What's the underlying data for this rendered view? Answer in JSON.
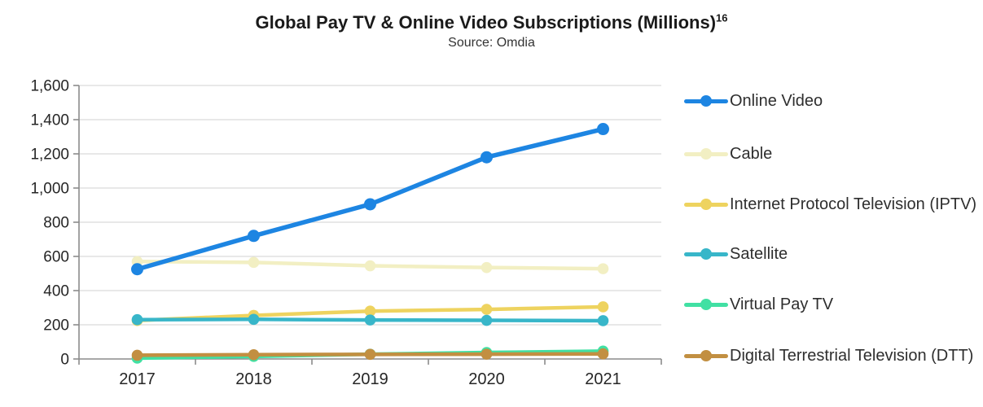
{
  "header": {
    "title": "Global Pay TV & Online Video Subscriptions (Millions)",
    "title_superscript": "16",
    "subtitle": "Source: Omdia"
  },
  "chart_data": {
    "type": "line",
    "x": [
      "2017",
      "2018",
      "2019",
      "2020",
      "2021"
    ],
    "series": [
      {
        "name": "Online Video",
        "color": "#1d85e2",
        "values": [
          525,
          720,
          905,
          1180,
          1345
        ]
      },
      {
        "name": "Cable",
        "color": "#f2efc3",
        "values": [
          570,
          565,
          545,
          535,
          528
        ]
      },
      {
        "name": "Internet Protocol Television (IPTV)",
        "color": "#eed35f",
        "values": [
          225,
          255,
          280,
          290,
          305
        ]
      },
      {
        "name": "Satellite",
        "color": "#38b6c9",
        "values": [
          230,
          232,
          228,
          226,
          224
        ]
      },
      {
        "name": "Virtual Pay TV",
        "color": "#41e0a3",
        "values": [
          5,
          15,
          28,
          38,
          46
        ]
      },
      {
        "name": "Digital Terrestrial Television (DTT)",
        "color": "#c28f41",
        "values": [
          22,
          25,
          27,
          28,
          30
        ]
      }
    ],
    "title": "Global Pay TV & Online Video Subscriptions (Millions)",
    "xlabel": "",
    "ylabel": "",
    "ylim": [
      0,
      1600
    ],
    "ytick_step": 200,
    "ytick_labels": [
      "0",
      "200",
      "400",
      "600",
      "800",
      "1,000",
      "1,200",
      "1,400",
      "1,600"
    ],
    "grid": true,
    "legend_position": "right"
  },
  "style": {
    "gridline_color": "#d9d9d9",
    "axis_color": "#8c8c8c",
    "tick_label_color": "#262626"
  }
}
